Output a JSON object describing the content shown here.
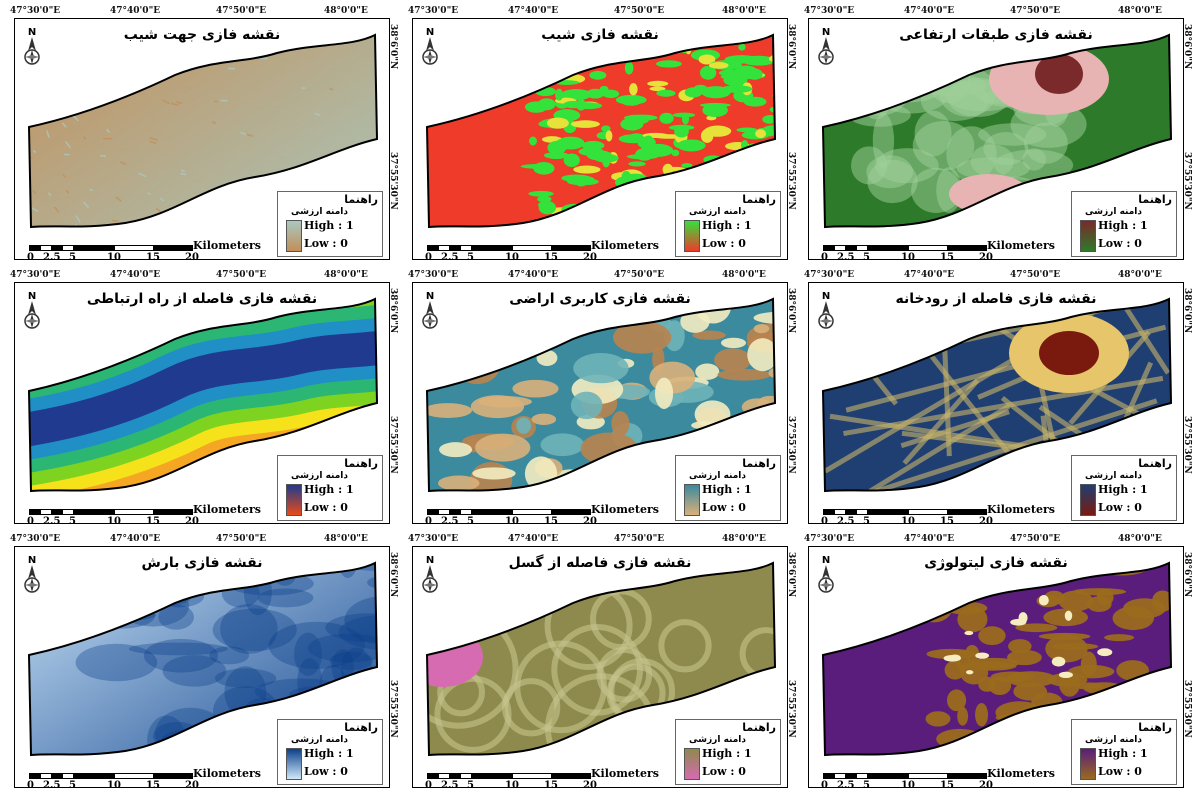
{
  "coordinates": {
    "top": [
      "47°30'0\"E",
      "47°40'0\"E",
      "47°50'0\"E",
      "48°0'0\"E"
    ],
    "right": [
      "38°6'0\"N",
      "37°55'30\"N"
    ]
  },
  "legend": {
    "title": "راهنما",
    "subtitle": "دامنه ارزشی",
    "high": "High : 1",
    "low": "Low : 0"
  },
  "scalebar": {
    "unit": "Kilometers",
    "ticks": [
      "0",
      "2.5",
      "5",
      "10",
      "15",
      "20"
    ]
  },
  "maps": [
    {
      "title": "نقشه فازی جهت شیب",
      "pattern": "aspect",
      "colors": [
        "#a9c9c0",
        "#c28e59"
      ]
    },
    {
      "title": "نقشه فازی شیب",
      "pattern": "slope",
      "colors": [
        "#33e23a",
        "#ee3b2a"
      ]
    },
    {
      "title": "نقشه فازی طبقات ارتفاعی",
      "pattern": "elevation",
      "colors": [
        "#7a2a2a",
        "#2d7a2a"
      ]
    },
    {
      "title": "نقشه فازی فاصله از راه ارتباطی",
      "pattern": "road",
      "colors": [
        "#1f3a8f",
        "#e94b17"
      ]
    },
    {
      "title": "نقشه فازی کاربری اراضی",
      "pattern": "landuse",
      "colors": [
        "#3b8a9e",
        "#d9b07a"
      ]
    },
    {
      "title": "نقشه فازی فاصله از رودخانه",
      "pattern": "river",
      "colors": [
        "#1f3f72",
        "#7a1a0f"
      ]
    },
    {
      "title": "نقشه فازی بارش",
      "pattern": "rain",
      "colors": [
        "#0c3f8a",
        "#cfe8fa"
      ]
    },
    {
      "title": "نقشه فازی فاصله از گسل",
      "pattern": "fault",
      "colors": [
        "#8e8a4d",
        "#d76bb1"
      ]
    },
    {
      "title": "نقشه فازی لیتولوژی",
      "pattern": "litho",
      "colors": [
        "#5a1d7c",
        "#9a6a1e"
      ]
    }
  ]
}
